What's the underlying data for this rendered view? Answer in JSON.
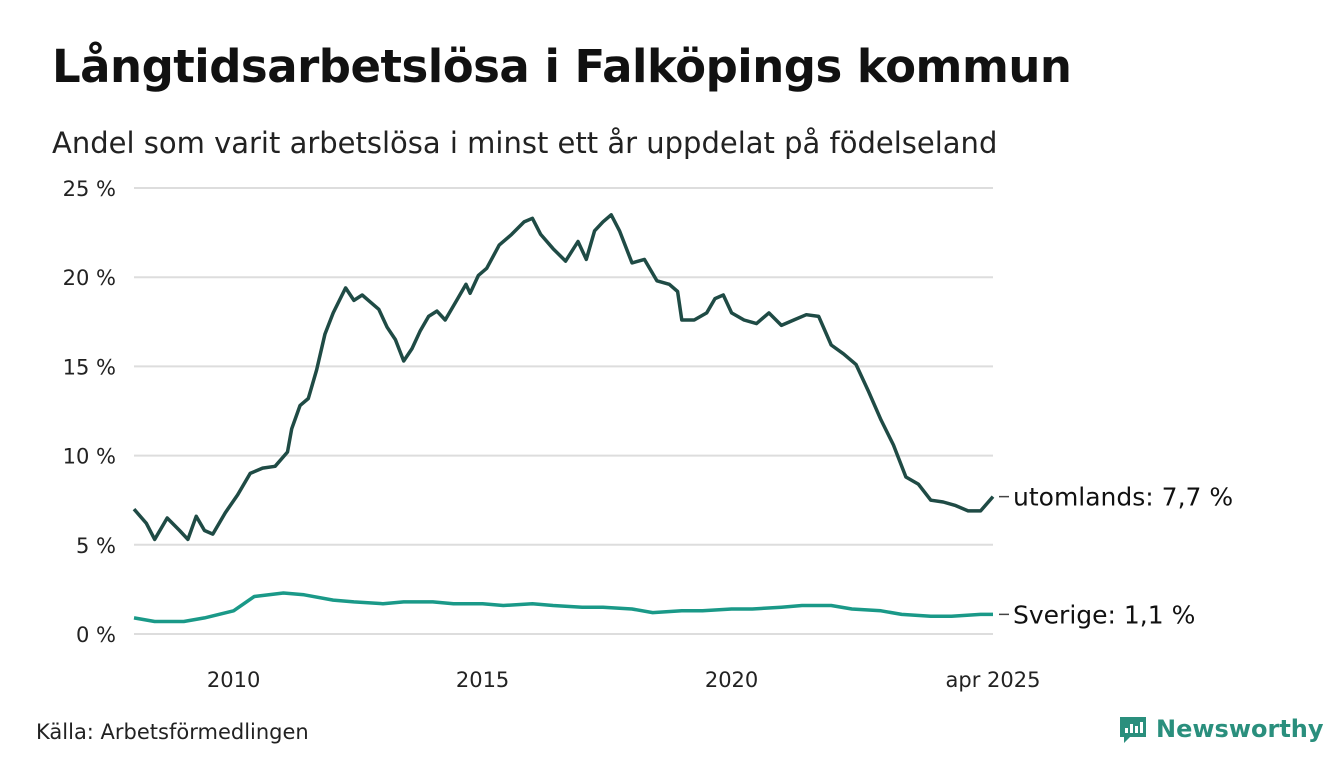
{
  "header": {
    "title": "Långtidsarbetslösa i Falköpings kommun",
    "subtitle": "Andel som varit arbetslösa i minst ett år uppdelat på födelseland"
  },
  "footer": {
    "source": "Källa: Arbetsförmedlingen",
    "brand": "Newsworthy"
  },
  "chart_data": {
    "type": "line",
    "title": "Långtidsarbetslösa i Falköpings kommun",
    "subtitle": "Andel som varit arbetslösa i minst ett år uppdelat på födelseland",
    "xlabel": "",
    "ylabel": "",
    "ylim": [
      0,
      25
    ],
    "y_ticks": [
      0,
      5,
      10,
      15,
      20,
      25
    ],
    "y_tick_labels": [
      "0 %",
      "5 %",
      "10 %",
      "15 %",
      "20 %",
      "25 %"
    ],
    "x_tick_labels": [
      {
        "label": "2010",
        "x": "2010-01"
      },
      {
        "label": "2015",
        "x": "2015-01"
      },
      {
        "label": "2020",
        "x": "2020-01"
      },
      {
        "label": "apr 2025",
        "x": "2025-04"
      }
    ],
    "grid": true,
    "legend": "direct labels at line ends",
    "colors": {
      "utomlands": "#1f4b45",
      "sverige": "#1a9988",
      "grid": "#dddddd"
    },
    "series": [
      {
        "key": "utomlands",
        "end_label": "utomlands: 7,7 %",
        "points": [
          [
            "2008-01",
            7.0
          ],
          [
            "2008-04",
            6.2
          ],
          [
            "2008-06",
            5.3
          ],
          [
            "2008-09",
            6.5
          ],
          [
            "2008-12",
            5.8
          ],
          [
            "2009-02",
            5.3
          ],
          [
            "2009-04",
            6.6
          ],
          [
            "2009-06",
            5.8
          ],
          [
            "2009-08",
            5.6
          ],
          [
            "2009-11",
            6.8
          ],
          [
            "2010-02",
            7.8
          ],
          [
            "2010-05",
            9.0
          ],
          [
            "2010-08",
            9.3
          ],
          [
            "2010-11",
            9.4
          ],
          [
            "2011-02",
            10.2
          ],
          [
            "2011-03",
            11.5
          ],
          [
            "2011-05",
            12.8
          ],
          [
            "2011-07",
            13.2
          ],
          [
            "2011-09",
            14.8
          ],
          [
            "2011-11",
            16.8
          ],
          [
            "2012-01",
            18.0
          ],
          [
            "2012-04",
            19.4
          ],
          [
            "2012-06",
            18.7
          ],
          [
            "2012-08",
            19.0
          ],
          [
            "2012-10",
            18.6
          ],
          [
            "2012-12",
            18.2
          ],
          [
            "2013-02",
            17.2
          ],
          [
            "2013-04",
            16.5
          ],
          [
            "2013-06",
            15.3
          ],
          [
            "2013-08",
            16.0
          ],
          [
            "2013-10",
            17.0
          ],
          [
            "2013-12",
            17.8
          ],
          [
            "2014-02",
            18.1
          ],
          [
            "2014-04",
            17.6
          ],
          [
            "2014-07",
            18.8
          ],
          [
            "2014-09",
            19.6
          ],
          [
            "2014-10",
            19.1
          ],
          [
            "2014-12",
            20.1
          ],
          [
            "2015-02",
            20.5
          ],
          [
            "2015-05",
            21.8
          ],
          [
            "2015-08",
            22.4
          ],
          [
            "2015-11",
            23.1
          ],
          [
            "2016-01",
            23.3
          ],
          [
            "2016-03",
            22.4
          ],
          [
            "2016-06",
            21.6
          ],
          [
            "2016-09",
            20.9
          ],
          [
            "2016-12",
            22.0
          ],
          [
            "2017-02",
            21.0
          ],
          [
            "2017-04",
            22.6
          ],
          [
            "2017-06",
            23.1
          ],
          [
            "2017-08",
            23.5
          ],
          [
            "2017-10",
            22.6
          ],
          [
            "2018-01",
            20.8
          ],
          [
            "2018-04",
            21.0
          ],
          [
            "2018-07",
            19.8
          ],
          [
            "2018-10",
            19.6
          ],
          [
            "2018-12",
            19.2
          ],
          [
            "2019-01",
            17.6
          ],
          [
            "2019-04",
            17.6
          ],
          [
            "2019-07",
            18.0
          ],
          [
            "2019-09",
            18.8
          ],
          [
            "2019-11",
            19.0
          ],
          [
            "2020-01",
            18.0
          ],
          [
            "2020-04",
            17.6
          ],
          [
            "2020-07",
            17.4
          ],
          [
            "2020-10",
            18.0
          ],
          [
            "2021-01",
            17.3
          ],
          [
            "2021-04",
            17.6
          ],
          [
            "2021-07",
            17.9
          ],
          [
            "2021-10",
            17.8
          ],
          [
            "2022-01",
            16.2
          ],
          [
            "2022-04",
            15.7
          ],
          [
            "2022-07",
            15.1
          ],
          [
            "2022-10",
            13.6
          ],
          [
            "2023-01",
            12.0
          ],
          [
            "2023-04",
            10.6
          ],
          [
            "2023-07",
            8.8
          ],
          [
            "2023-10",
            8.4
          ],
          [
            "2024-01",
            7.5
          ],
          [
            "2024-04",
            7.4
          ],
          [
            "2024-07",
            7.2
          ],
          [
            "2024-10",
            6.9
          ],
          [
            "2025-01",
            6.9
          ],
          [
            "2025-04",
            7.7
          ]
        ]
      },
      {
        "key": "sverige",
        "end_label": "Sverige: 1,1 %",
        "points": [
          [
            "2008-01",
            0.9
          ],
          [
            "2008-06",
            0.7
          ],
          [
            "2009-01",
            0.7
          ],
          [
            "2009-06",
            0.9
          ],
          [
            "2010-01",
            1.3
          ],
          [
            "2010-06",
            2.1
          ],
          [
            "2011-01",
            2.3
          ],
          [
            "2011-06",
            2.2
          ],
          [
            "2012-01",
            1.9
          ],
          [
            "2012-06",
            1.8
          ],
          [
            "2013-01",
            1.7
          ],
          [
            "2013-06",
            1.8
          ],
          [
            "2014-01",
            1.8
          ],
          [
            "2014-06",
            1.7
          ],
          [
            "2015-01",
            1.7
          ],
          [
            "2015-06",
            1.6
          ],
          [
            "2016-01",
            1.7
          ],
          [
            "2016-06",
            1.6
          ],
          [
            "2017-01",
            1.5
          ],
          [
            "2017-06",
            1.5
          ],
          [
            "2018-01",
            1.4
          ],
          [
            "2018-06",
            1.2
          ],
          [
            "2019-01",
            1.3
          ],
          [
            "2019-06",
            1.3
          ],
          [
            "2020-01",
            1.4
          ],
          [
            "2020-06",
            1.4
          ],
          [
            "2021-01",
            1.5
          ],
          [
            "2021-06",
            1.6
          ],
          [
            "2022-01",
            1.6
          ],
          [
            "2022-06",
            1.4
          ],
          [
            "2023-01",
            1.3
          ],
          [
            "2023-06",
            1.1
          ],
          [
            "2024-01",
            1.0
          ],
          [
            "2024-06",
            1.0
          ],
          [
            "2025-01",
            1.1
          ],
          [
            "2025-04",
            1.1
          ]
        ]
      }
    ]
  }
}
